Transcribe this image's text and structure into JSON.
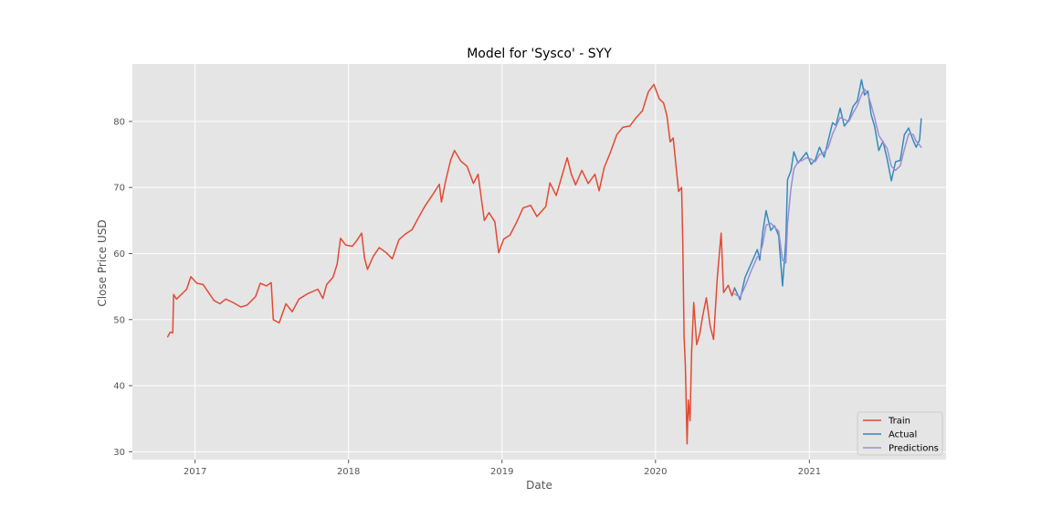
{
  "chart_data": {
    "type": "line",
    "title": "Model for 'Sysco' - SYY",
    "xlabel": "Date",
    "ylabel": "Close Price USD",
    "xlim": [
      "2016-08-05",
      "2021-11-22"
    ],
    "ylim": [
      28.8,
      88.7
    ],
    "x_ticks": [
      "2017-01-01",
      "2018-01-01",
      "2019-01-01",
      "2020-01-01",
      "2021-01-01"
    ],
    "x_tick_labels": [
      "2017",
      "2018",
      "2019",
      "2020",
      "2021"
    ],
    "y_ticks": [
      30,
      40,
      50,
      60,
      70,
      80
    ],
    "y_tick_labels": [
      "30",
      "40",
      "50",
      "60",
      "70",
      "80"
    ],
    "grid": true,
    "legend": "lower-right",
    "series": [
      {
        "name": "Train",
        "color": "#E24A33",
        "points": [
          [
            "2016-10-28",
            47.4
          ],
          [
            "2016-11-03",
            48.1
          ],
          [
            "2016-11-09",
            48.0
          ],
          [
            "2016-11-11",
            53.8
          ],
          [
            "2016-11-18",
            53.1
          ],
          [
            "2016-12-01",
            53.9
          ],
          [
            "2016-12-12",
            54.6
          ],
          [
            "2016-12-22",
            56.5
          ],
          [
            "2017-01-05",
            55.5
          ],
          [
            "2017-01-20",
            55.3
          ],
          [
            "2017-02-01",
            54.2
          ],
          [
            "2017-02-15",
            52.9
          ],
          [
            "2017-03-01",
            52.4
          ],
          [
            "2017-03-15",
            53.1
          ],
          [
            "2017-04-01",
            52.6
          ],
          [
            "2017-04-20",
            51.9
          ],
          [
            "2017-05-05",
            52.2
          ],
          [
            "2017-05-25",
            53.5
          ],
          [
            "2017-06-05",
            55.5
          ],
          [
            "2017-06-20",
            55.1
          ],
          [
            "2017-07-01",
            55.6
          ],
          [
            "2017-07-06",
            50.0
          ],
          [
            "2017-07-20",
            49.5
          ],
          [
            "2017-08-05",
            52.4
          ],
          [
            "2017-08-20",
            51.2
          ],
          [
            "2017-09-05",
            53.1
          ],
          [
            "2017-09-25",
            53.9
          ],
          [
            "2017-10-20",
            54.6
          ],
          [
            "2017-11-01",
            53.2
          ],
          [
            "2017-11-10",
            55.3
          ],
          [
            "2017-11-25",
            56.4
          ],
          [
            "2017-12-05",
            58.4
          ],
          [
            "2017-12-13",
            62.3
          ],
          [
            "2017-12-25",
            61.3
          ],
          [
            "2018-01-10",
            61.1
          ],
          [
            "2018-01-20",
            61.9
          ],
          [
            "2018-02-01",
            63.1
          ],
          [
            "2018-02-08",
            59.3
          ],
          [
            "2018-02-15",
            57.6
          ],
          [
            "2018-03-01",
            59.6
          ],
          [
            "2018-03-15",
            60.9
          ],
          [
            "2018-04-01",
            60.1
          ],
          [
            "2018-04-15",
            59.2
          ],
          [
            "2018-05-01",
            62.1
          ],
          [
            "2018-05-15",
            62.9
          ],
          [
            "2018-06-01",
            63.6
          ],
          [
            "2018-06-15",
            65.3
          ],
          [
            "2018-07-01",
            67.1
          ],
          [
            "2018-07-20",
            68.9
          ],
          [
            "2018-08-05",
            70.5
          ],
          [
            "2018-08-10",
            67.8
          ],
          [
            "2018-08-20",
            71.0
          ],
          [
            "2018-09-01",
            74.2
          ],
          [
            "2018-09-10",
            75.6
          ],
          [
            "2018-09-25",
            74.0
          ],
          [
            "2018-10-10",
            73.2
          ],
          [
            "2018-10-25",
            70.6
          ],
          [
            "2018-11-05",
            72.0
          ],
          [
            "2018-11-20",
            65.0
          ],
          [
            "2018-12-01",
            66.2
          ],
          [
            "2018-12-15",
            64.8
          ],
          [
            "2018-12-24",
            60.1
          ],
          [
            "2019-01-05",
            62.2
          ],
          [
            "2019-01-20",
            62.8
          ],
          [
            "2019-02-05",
            64.8
          ],
          [
            "2019-02-20",
            66.9
          ],
          [
            "2019-03-10",
            67.3
          ],
          [
            "2019-03-25",
            65.6
          ],
          [
            "2019-04-15",
            67.1
          ],
          [
            "2019-04-25",
            70.7
          ],
          [
            "2019-05-10",
            68.8
          ],
          [
            "2019-05-25",
            72.1
          ],
          [
            "2019-06-05",
            74.5
          ],
          [
            "2019-06-15",
            72.0
          ],
          [
            "2019-06-25",
            70.4
          ],
          [
            "2019-07-10",
            72.6
          ],
          [
            "2019-07-25",
            70.6
          ],
          [
            "2019-08-10",
            72.0
          ],
          [
            "2019-08-20",
            69.5
          ],
          [
            "2019-09-01",
            73.0
          ],
          [
            "2019-09-15",
            75.2
          ],
          [
            "2019-10-01",
            78.0
          ],
          [
            "2019-10-15",
            79.1
          ],
          [
            "2019-11-01",
            79.3
          ],
          [
            "2019-11-15",
            80.5
          ],
          [
            "2019-12-01",
            81.6
          ],
          [
            "2019-12-15",
            84.5
          ],
          [
            "2019-12-28",
            85.6
          ],
          [
            "2020-01-10",
            83.4
          ],
          [
            "2020-01-20",
            82.8
          ],
          [
            "2020-01-28",
            80.9
          ],
          [
            "2020-02-05",
            76.9
          ],
          [
            "2020-02-12",
            77.5
          ],
          [
            "2020-02-25",
            69.4
          ],
          [
            "2020-03-03",
            70.0
          ],
          [
            "2020-03-06",
            61.6
          ],
          [
            "2020-03-09",
            47.5
          ],
          [
            "2020-03-12",
            43.0
          ],
          [
            "2020-03-16",
            31.2
          ],
          [
            "2020-03-19",
            37.8
          ],
          [
            "2020-03-23",
            34.7
          ],
          [
            "2020-03-27",
            45.2
          ],
          [
            "2020-04-01",
            52.6
          ],
          [
            "2020-04-08",
            46.2
          ],
          [
            "2020-04-15",
            47.8
          ],
          [
            "2020-04-22",
            50.5
          ],
          [
            "2020-05-01",
            53.3
          ],
          [
            "2020-05-10",
            49.0
          ],
          [
            "2020-05-18",
            47.0
          ],
          [
            "2020-05-27",
            56.4
          ],
          [
            "2020-06-05",
            63.1
          ],
          [
            "2020-06-11",
            54.1
          ],
          [
            "2020-06-22",
            55.2
          ],
          [
            "2020-07-01",
            53.6
          ],
          [
            "2020-07-07",
            54.8
          ]
        ]
      },
      {
        "name": "Actual",
        "color": "#348ABD",
        "points": [
          [
            "2020-07-07",
            54.8
          ],
          [
            "2020-07-20",
            53.0
          ],
          [
            "2020-08-01",
            56.4
          ],
          [
            "2020-08-15",
            58.4
          ],
          [
            "2020-08-30",
            60.6
          ],
          [
            "2020-09-05",
            59.0
          ],
          [
            "2020-09-12",
            63.2
          ],
          [
            "2020-09-20",
            66.5
          ],
          [
            "2020-10-01",
            63.5
          ],
          [
            "2020-10-10",
            64.2
          ],
          [
            "2020-10-20",
            62.7
          ],
          [
            "2020-10-29",
            55.1
          ],
          [
            "2020-11-06",
            62.0
          ],
          [
            "2020-11-10",
            71.2
          ],
          [
            "2020-11-18",
            72.5
          ],
          [
            "2020-11-25",
            75.4
          ],
          [
            "2020-12-05",
            73.7
          ],
          [
            "2020-12-15",
            74.5
          ],
          [
            "2020-12-25",
            75.3
          ],
          [
            "2021-01-05",
            73.5
          ],
          [
            "2021-01-15",
            74.2
          ],
          [
            "2021-01-25",
            76.1
          ],
          [
            "2021-02-05",
            74.6
          ],
          [
            "2021-02-15",
            77.2
          ],
          [
            "2021-02-25",
            79.8
          ],
          [
            "2021-03-05",
            79.4
          ],
          [
            "2021-03-15",
            82.0
          ],
          [
            "2021-03-25",
            79.3
          ],
          [
            "2021-04-05",
            80.2
          ],
          [
            "2021-04-15",
            82.3
          ],
          [
            "2021-04-25",
            83.1
          ],
          [
            "2021-05-05",
            86.3
          ],
          [
            "2021-05-12",
            84.0
          ],
          [
            "2021-05-20",
            84.6
          ],
          [
            "2021-05-28",
            81.0
          ],
          [
            "2021-06-05",
            79.3
          ],
          [
            "2021-06-15",
            75.6
          ],
          [
            "2021-06-25",
            77.0
          ],
          [
            "2021-07-05",
            74.3
          ],
          [
            "2021-07-15",
            71.0
          ],
          [
            "2021-07-25",
            73.9
          ],
          [
            "2021-08-05",
            74.1
          ],
          [
            "2021-08-15",
            78.0
          ],
          [
            "2021-08-25",
            79.0
          ],
          [
            "2021-09-05",
            77.1
          ],
          [
            "2021-09-12",
            76.1
          ],
          [
            "2021-09-20",
            77.2
          ],
          [
            "2021-09-24",
            80.4
          ]
        ]
      },
      {
        "name": "Predictions",
        "color": "#988ED5",
        "points": [
          [
            "2020-07-07",
            53.9
          ],
          [
            "2020-07-20",
            53.4
          ],
          [
            "2020-08-01",
            55.0
          ],
          [
            "2020-08-15",
            57.3
          ],
          [
            "2020-08-30",
            59.5
          ],
          [
            "2020-09-05",
            59.8
          ],
          [
            "2020-09-12",
            61.4
          ],
          [
            "2020-09-20",
            64.3
          ],
          [
            "2020-10-01",
            64.6
          ],
          [
            "2020-10-10",
            64.0
          ],
          [
            "2020-10-20",
            63.4
          ],
          [
            "2020-10-29",
            59.0
          ],
          [
            "2020-11-06",
            58.6
          ],
          [
            "2020-11-10",
            64.5
          ],
          [
            "2020-11-18",
            69.8
          ],
          [
            "2020-11-25",
            72.8
          ],
          [
            "2020-12-05",
            73.9
          ],
          [
            "2020-12-15",
            74.1
          ],
          [
            "2020-12-25",
            74.5
          ],
          [
            "2021-01-05",
            74.3
          ],
          [
            "2021-01-15",
            73.9
          ],
          [
            "2021-01-25",
            75.0
          ],
          [
            "2021-02-05",
            75.3
          ],
          [
            "2021-02-15",
            76.1
          ],
          [
            "2021-02-25",
            78.1
          ],
          [
            "2021-03-05",
            79.2
          ],
          [
            "2021-03-15",
            80.6
          ],
          [
            "2021-03-25",
            80.3
          ],
          [
            "2021-04-05",
            80.0
          ],
          [
            "2021-04-15",
            81.3
          ],
          [
            "2021-04-25",
            82.4
          ],
          [
            "2021-05-05",
            84.1
          ],
          [
            "2021-05-12",
            84.9
          ],
          [
            "2021-05-20",
            84.1
          ],
          [
            "2021-05-28",
            82.5
          ],
          [
            "2021-06-05",
            80.6
          ],
          [
            "2021-06-15",
            77.9
          ],
          [
            "2021-06-25",
            76.9
          ],
          [
            "2021-07-05",
            75.9
          ],
          [
            "2021-07-15",
            73.2
          ],
          [
            "2021-07-25",
            72.6
          ],
          [
            "2021-08-05",
            73.3
          ],
          [
            "2021-08-15",
            75.8
          ],
          [
            "2021-08-25",
            78.1
          ],
          [
            "2021-09-05",
            78.0
          ],
          [
            "2021-09-12",
            77.0
          ],
          [
            "2021-09-20",
            76.4
          ],
          [
            "2021-09-24",
            76.1
          ]
        ]
      }
    ]
  }
}
